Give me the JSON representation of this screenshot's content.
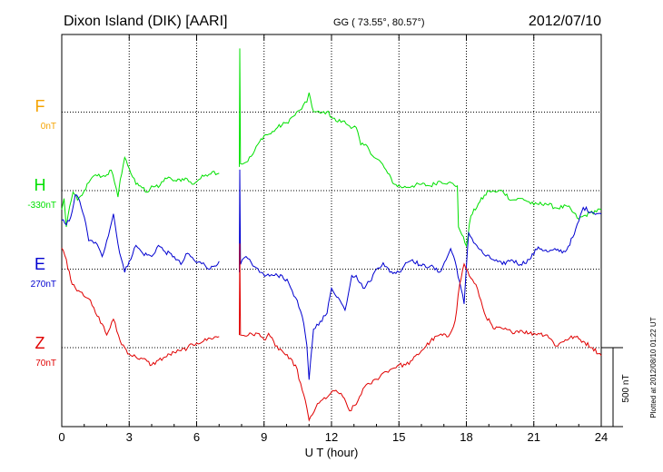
{
  "header": {
    "station": "Dixon Island (DIK)  [AARI]",
    "coords": "GG ( 73.55°,  80.57°)",
    "date": "2012/07/10"
  },
  "side_note": "Plotted at 2012/08/10 01:22 UT",
  "chart_data": {
    "type": "line",
    "xlabel": "U T (hour)",
    "xlim": [
      0,
      24
    ],
    "xticks": [
      0,
      3,
      6,
      9,
      12,
      15,
      18,
      21,
      24
    ],
    "scale_label": "500 nT",
    "colors": {
      "F": "#f5a300",
      "H": "#00e000",
      "E": "#0000d0",
      "Z": "#e00000"
    },
    "series": [
      {
        "name": "F",
        "baseline": "0nT",
        "values": []
      },
      {
        "name": "H",
        "baseline": "-330nT",
        "gap": [
          7.0,
          7.9
        ],
        "values": [
          [
            0.0,
            -120
          ],
          [
            0.1,
            -50
          ],
          [
            0.2,
            -230
          ],
          [
            0.35,
            -100
          ],
          [
            0.5,
            -10
          ],
          [
            0.7,
            -60
          ],
          [
            0.9,
            -30
          ],
          [
            1.0,
            0
          ],
          [
            1.2,
            50
          ],
          [
            1.5,
            100
          ],
          [
            1.8,
            90
          ],
          [
            2.0,
            100
          ],
          [
            2.2,
            130
          ],
          [
            2.35,
            50
          ],
          [
            2.5,
            -40
          ],
          [
            2.6,
            70
          ],
          [
            2.8,
            210
          ],
          [
            3.0,
            140
          ],
          [
            3.3,
            40
          ],
          [
            3.5,
            30
          ],
          [
            3.8,
            -10
          ],
          [
            4.0,
            30
          ],
          [
            4.3,
            20
          ],
          [
            4.6,
            80
          ],
          [
            4.9,
            70
          ],
          [
            5.1,
            60
          ],
          [
            5.5,
            80
          ],
          [
            5.8,
            40
          ],
          [
            6.1,
            70
          ],
          [
            6.4,
            100
          ],
          [
            6.7,
            120
          ],
          [
            7.0,
            110
          ],
          [
            7.9,
            150
          ],
          [
            7.92,
            900
          ],
          [
            7.95,
            170
          ],
          [
            8.2,
            180
          ],
          [
            8.5,
            230
          ],
          [
            8.8,
            310
          ],
          [
            9.0,
            350
          ],
          [
            9.3,
            360
          ],
          [
            9.6,
            400
          ],
          [
            10.0,
            430
          ],
          [
            10.3,
            470
          ],
          [
            10.6,
            510
          ],
          [
            10.9,
            560
          ],
          [
            11.0,
            620
          ],
          [
            11.2,
            500
          ],
          [
            11.5,
            490
          ],
          [
            11.8,
            500
          ],
          [
            12.2,
            440
          ],
          [
            12.5,
            440
          ],
          [
            12.8,
            410
          ],
          [
            13.1,
            400
          ],
          [
            13.3,
            290
          ],
          [
            13.6,
            280
          ],
          [
            13.9,
            210
          ],
          [
            14.2,
            180
          ],
          [
            14.5,
            110
          ],
          [
            14.8,
            40
          ],
          [
            15.2,
            20
          ],
          [
            15.6,
            30
          ],
          [
            16.0,
            40
          ],
          [
            16.4,
            30
          ],
          [
            16.8,
            60
          ],
          [
            17.2,
            50
          ],
          [
            17.6,
            30
          ],
          [
            17.65,
            -230
          ],
          [
            17.8,
            -280
          ],
          [
            18.0,
            -350
          ],
          [
            18.2,
            -160
          ],
          [
            18.6,
            -70
          ],
          [
            19.0,
            0
          ],
          [
            19.3,
            -10
          ],
          [
            19.6,
            0
          ],
          [
            20.0,
            -60
          ],
          [
            20.5,
            -50
          ],
          [
            21.0,
            -90
          ],
          [
            21.5,
            -80
          ],
          [
            22.0,
            -110
          ],
          [
            22.5,
            -100
          ],
          [
            23.0,
            -180
          ],
          [
            23.5,
            -140
          ],
          [
            24.0,
            -120
          ]
        ]
      },
      {
        "name": "E",
        "baseline": "270nT",
        "gap": [
          7.0,
          7.9
        ],
        "values": [
          [
            0.0,
            310
          ],
          [
            0.2,
            280
          ],
          [
            0.4,
            330
          ],
          [
            0.6,
            470
          ],
          [
            0.8,
            430
          ],
          [
            1.0,
            330
          ],
          [
            1.2,
            180
          ],
          [
            1.5,
            170
          ],
          [
            1.8,
            80
          ],
          [
            2.0,
            180
          ],
          [
            2.3,
            350
          ],
          [
            2.5,
            160
          ],
          [
            2.8,
            -20
          ],
          [
            3.0,
            50
          ],
          [
            3.3,
            150
          ],
          [
            3.6,
            100
          ],
          [
            4.0,
            80
          ],
          [
            4.3,
            150
          ],
          [
            4.6,
            110
          ],
          [
            5.0,
            80
          ],
          [
            5.3,
            30
          ],
          [
            5.6,
            100
          ],
          [
            6.0,
            40
          ],
          [
            6.3,
            40
          ],
          [
            6.6,
            0
          ],
          [
            7.0,
            50
          ],
          [
            7.9,
            -20
          ],
          [
            7.92,
            630
          ],
          [
            7.95,
            30
          ],
          [
            8.2,
            80
          ],
          [
            8.5,
            20
          ],
          [
            8.8,
            -20
          ],
          [
            9.1,
            -40
          ],
          [
            9.4,
            -40
          ],
          [
            9.8,
            -40
          ],
          [
            10.1,
            -90
          ],
          [
            10.4,
            -180
          ],
          [
            10.7,
            -300
          ],
          [
            10.9,
            -480
          ],
          [
            11.0,
            -700
          ],
          [
            11.2,
            -380
          ],
          [
            11.5,
            -330
          ],
          [
            11.8,
            -280
          ],
          [
            12.0,
            -120
          ],
          [
            12.3,
            -180
          ],
          [
            12.6,
            -260
          ],
          [
            12.9,
            -40
          ],
          [
            13.1,
            -40
          ],
          [
            13.4,
            -120
          ],
          [
            13.7,
            -80
          ],
          [
            14.0,
            0
          ],
          [
            14.3,
            40
          ],
          [
            14.6,
            -20
          ],
          [
            15.0,
            -20
          ],
          [
            15.3,
            40
          ],
          [
            15.6,
            60
          ],
          [
            16.0,
            20
          ],
          [
            16.4,
            20
          ],
          [
            16.8,
            -20
          ],
          [
            17.1,
            60
          ],
          [
            17.3,
            130
          ],
          [
            17.5,
            50
          ],
          [
            17.7,
            -80
          ],
          [
            17.9,
            -220
          ],
          [
            18.1,
            230
          ],
          [
            18.4,
            160
          ],
          [
            18.8,
            90
          ],
          [
            19.2,
            60
          ],
          [
            19.6,
            30
          ],
          [
            20.0,
            60
          ],
          [
            20.4,
            30
          ],
          [
            20.8,
            60
          ],
          [
            21.2,
            140
          ],
          [
            21.6,
            110
          ],
          [
            22.0,
            120
          ],
          [
            22.4,
            110
          ],
          [
            22.8,
            220
          ],
          [
            23.2,
            390
          ],
          [
            23.6,
            360
          ],
          [
            24.0,
            350
          ]
        ]
      },
      {
        "name": "Z",
        "baseline": "70nT",
        "gap": [
          7.0,
          7.9
        ],
        "values": [
          [
            0.0,
            630
          ],
          [
            0.2,
            560
          ],
          [
            0.4,
            430
          ],
          [
            0.6,
            380
          ],
          [
            0.9,
            350
          ],
          [
            1.2,
            310
          ],
          [
            1.5,
            220
          ],
          [
            1.8,
            150
          ],
          [
            2.0,
            80
          ],
          [
            2.3,
            180
          ],
          [
            2.6,
            40
          ],
          [
            3.0,
            -40
          ],
          [
            3.3,
            -60
          ],
          [
            3.6,
            -70
          ],
          [
            4.0,
            -110
          ],
          [
            4.3,
            -80
          ],
          [
            4.6,
            -60
          ],
          [
            5.0,
            -30
          ],
          [
            5.3,
            -20
          ],
          [
            5.6,
            0
          ],
          [
            6.0,
            30
          ],
          [
            6.3,
            40
          ],
          [
            6.6,
            60
          ],
          [
            7.0,
            70
          ],
          [
            7.9,
            80
          ],
          [
            7.92,
            660
          ],
          [
            7.95,
            80
          ],
          [
            8.3,
            80
          ],
          [
            8.7,
            90
          ],
          [
            9.0,
            50
          ],
          [
            9.2,
            90
          ],
          [
            9.5,
            10
          ],
          [
            9.8,
            -20
          ],
          [
            10.1,
            -70
          ],
          [
            10.4,
            -110
          ],
          [
            10.7,
            -270
          ],
          [
            10.9,
            -380
          ],
          [
            11.0,
            -460
          ],
          [
            11.3,
            -380
          ],
          [
            11.6,
            -330
          ],
          [
            11.9,
            -300
          ],
          [
            12.2,
            -270
          ],
          [
            12.5,
            -310
          ],
          [
            12.8,
            -400
          ],
          [
            13.1,
            -360
          ],
          [
            13.4,
            -260
          ],
          [
            13.7,
            -230
          ],
          [
            14.0,
            -200
          ],
          [
            14.3,
            -160
          ],
          [
            14.6,
            -140
          ],
          [
            15.0,
            -110
          ],
          [
            15.3,
            -110
          ],
          [
            15.6,
            -80
          ],
          [
            16.0,
            -20
          ],
          [
            16.4,
            40
          ],
          [
            16.8,
            80
          ],
          [
            17.2,
            70
          ],
          [
            17.5,
            170
          ],
          [
            17.7,
            400
          ],
          [
            17.9,
            530
          ],
          [
            18.2,
            440
          ],
          [
            18.5,
            370
          ],
          [
            18.8,
            220
          ],
          [
            19.2,
            120
          ],
          [
            19.6,
            120
          ],
          [
            20.0,
            100
          ],
          [
            20.4,
            110
          ],
          [
            20.8,
            90
          ],
          [
            21.2,
            90
          ],
          [
            21.6,
            80
          ],
          [
            22.0,
            10
          ],
          [
            22.4,
            50
          ],
          [
            22.8,
            70
          ],
          [
            23.2,
            40
          ],
          [
            23.6,
            0
          ],
          [
            24.0,
            -50
          ]
        ]
      }
    ]
  }
}
